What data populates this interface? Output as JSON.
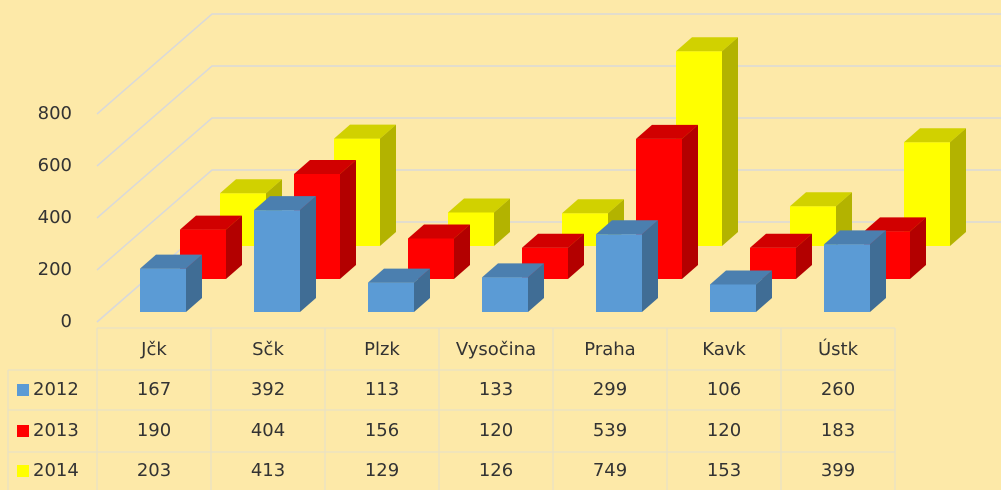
{
  "chart_data": {
    "type": "bar3d",
    "categories": [
      "Jčk",
      "Sčk",
      "Plzk",
      "Vysočina",
      "Praha",
      "Kavk",
      "Ústk"
    ],
    "series": [
      {
        "name": "2012",
        "color": "#5b9bd5",
        "values": [
          167,
          392,
          113,
          133,
          299,
          106,
          260
        ]
      },
      {
        "name": "2013",
        "color": "#ff0000",
        "values": [
          190,
          404,
          156,
          120,
          539,
          120,
          183
        ]
      },
      {
        "name": "2014",
        "color": "#ffff00",
        "values": [
          203,
          413,
          129,
          126,
          749,
          153,
          399
        ]
      }
    ],
    "ylim": [
      0,
      800
    ],
    "yticks": [
      0,
      200,
      400,
      600,
      800
    ],
    "grid": true,
    "data_table": true
  }
}
